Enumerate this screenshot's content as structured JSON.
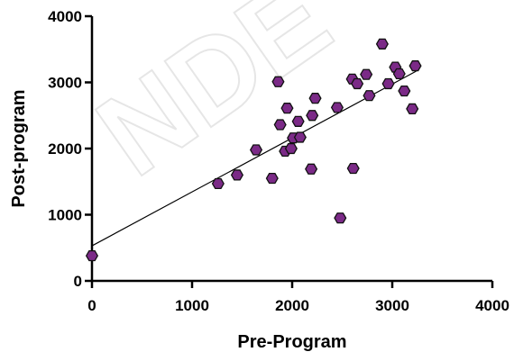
{
  "chart_data": {
    "type": "scatter",
    "xlabel": "Pre-Program",
    "ylabel": "Post-program",
    "xlim": [
      0,
      4000
    ],
    "ylim": [
      0,
      4000
    ],
    "x_ticks": [
      0,
      1000,
      2000,
      3000,
      4000
    ],
    "y_ticks": [
      0,
      1000,
      2000,
      3000,
      4000
    ],
    "x_tick_labels": [
      "0",
      "1000",
      "2000",
      "3000",
      "4000"
    ],
    "y_tick_labels": [
      "0",
      "1000",
      "2000",
      "3000",
      "4000"
    ],
    "grid": false,
    "legend": "none",
    "marker_shape": "hexagon",
    "marker_color": "#7b2a87",
    "marker_edge_color": "#111111",
    "fit_line_color": "#000000",
    "series": [
      {
        "points": [
          {
            "x": 0,
            "y": 380
          },
          {
            "x": 1260,
            "y": 1470
          },
          {
            "x": 1450,
            "y": 1600
          },
          {
            "x": 1640,
            "y": 1980
          },
          {
            "x": 1800,
            "y": 1550
          },
          {
            "x": 1860,
            "y": 3010
          },
          {
            "x": 1880,
            "y": 2360
          },
          {
            "x": 1930,
            "y": 1960
          },
          {
            "x": 1950,
            "y": 2610
          },
          {
            "x": 1990,
            "y": 2000
          },
          {
            "x": 2010,
            "y": 2160
          },
          {
            "x": 2060,
            "y": 2410
          },
          {
            "x": 2080,
            "y": 2170
          },
          {
            "x": 2190,
            "y": 1690
          },
          {
            "x": 2200,
            "y": 2500
          },
          {
            "x": 2230,
            "y": 2760
          },
          {
            "x": 2450,
            "y": 2620
          },
          {
            "x": 2480,
            "y": 950
          },
          {
            "x": 2600,
            "y": 3050
          },
          {
            "x": 2610,
            "y": 1700
          },
          {
            "x": 2650,
            "y": 2980
          },
          {
            "x": 2740,
            "y": 3120
          },
          {
            "x": 2770,
            "y": 2800
          },
          {
            "x": 2900,
            "y": 3580
          },
          {
            "x": 2960,
            "y": 2980
          },
          {
            "x": 3030,
            "y": 3230
          },
          {
            "x": 3070,
            "y": 3130
          },
          {
            "x": 3120,
            "y": 2870
          },
          {
            "x": 3200,
            "y": 2600
          },
          {
            "x": 3230,
            "y": 3250
          }
        ]
      }
    ],
    "fit_line": {
      "x": [
        0,
        3240
      ],
      "y": [
        530,
        3170
      ]
    }
  }
}
